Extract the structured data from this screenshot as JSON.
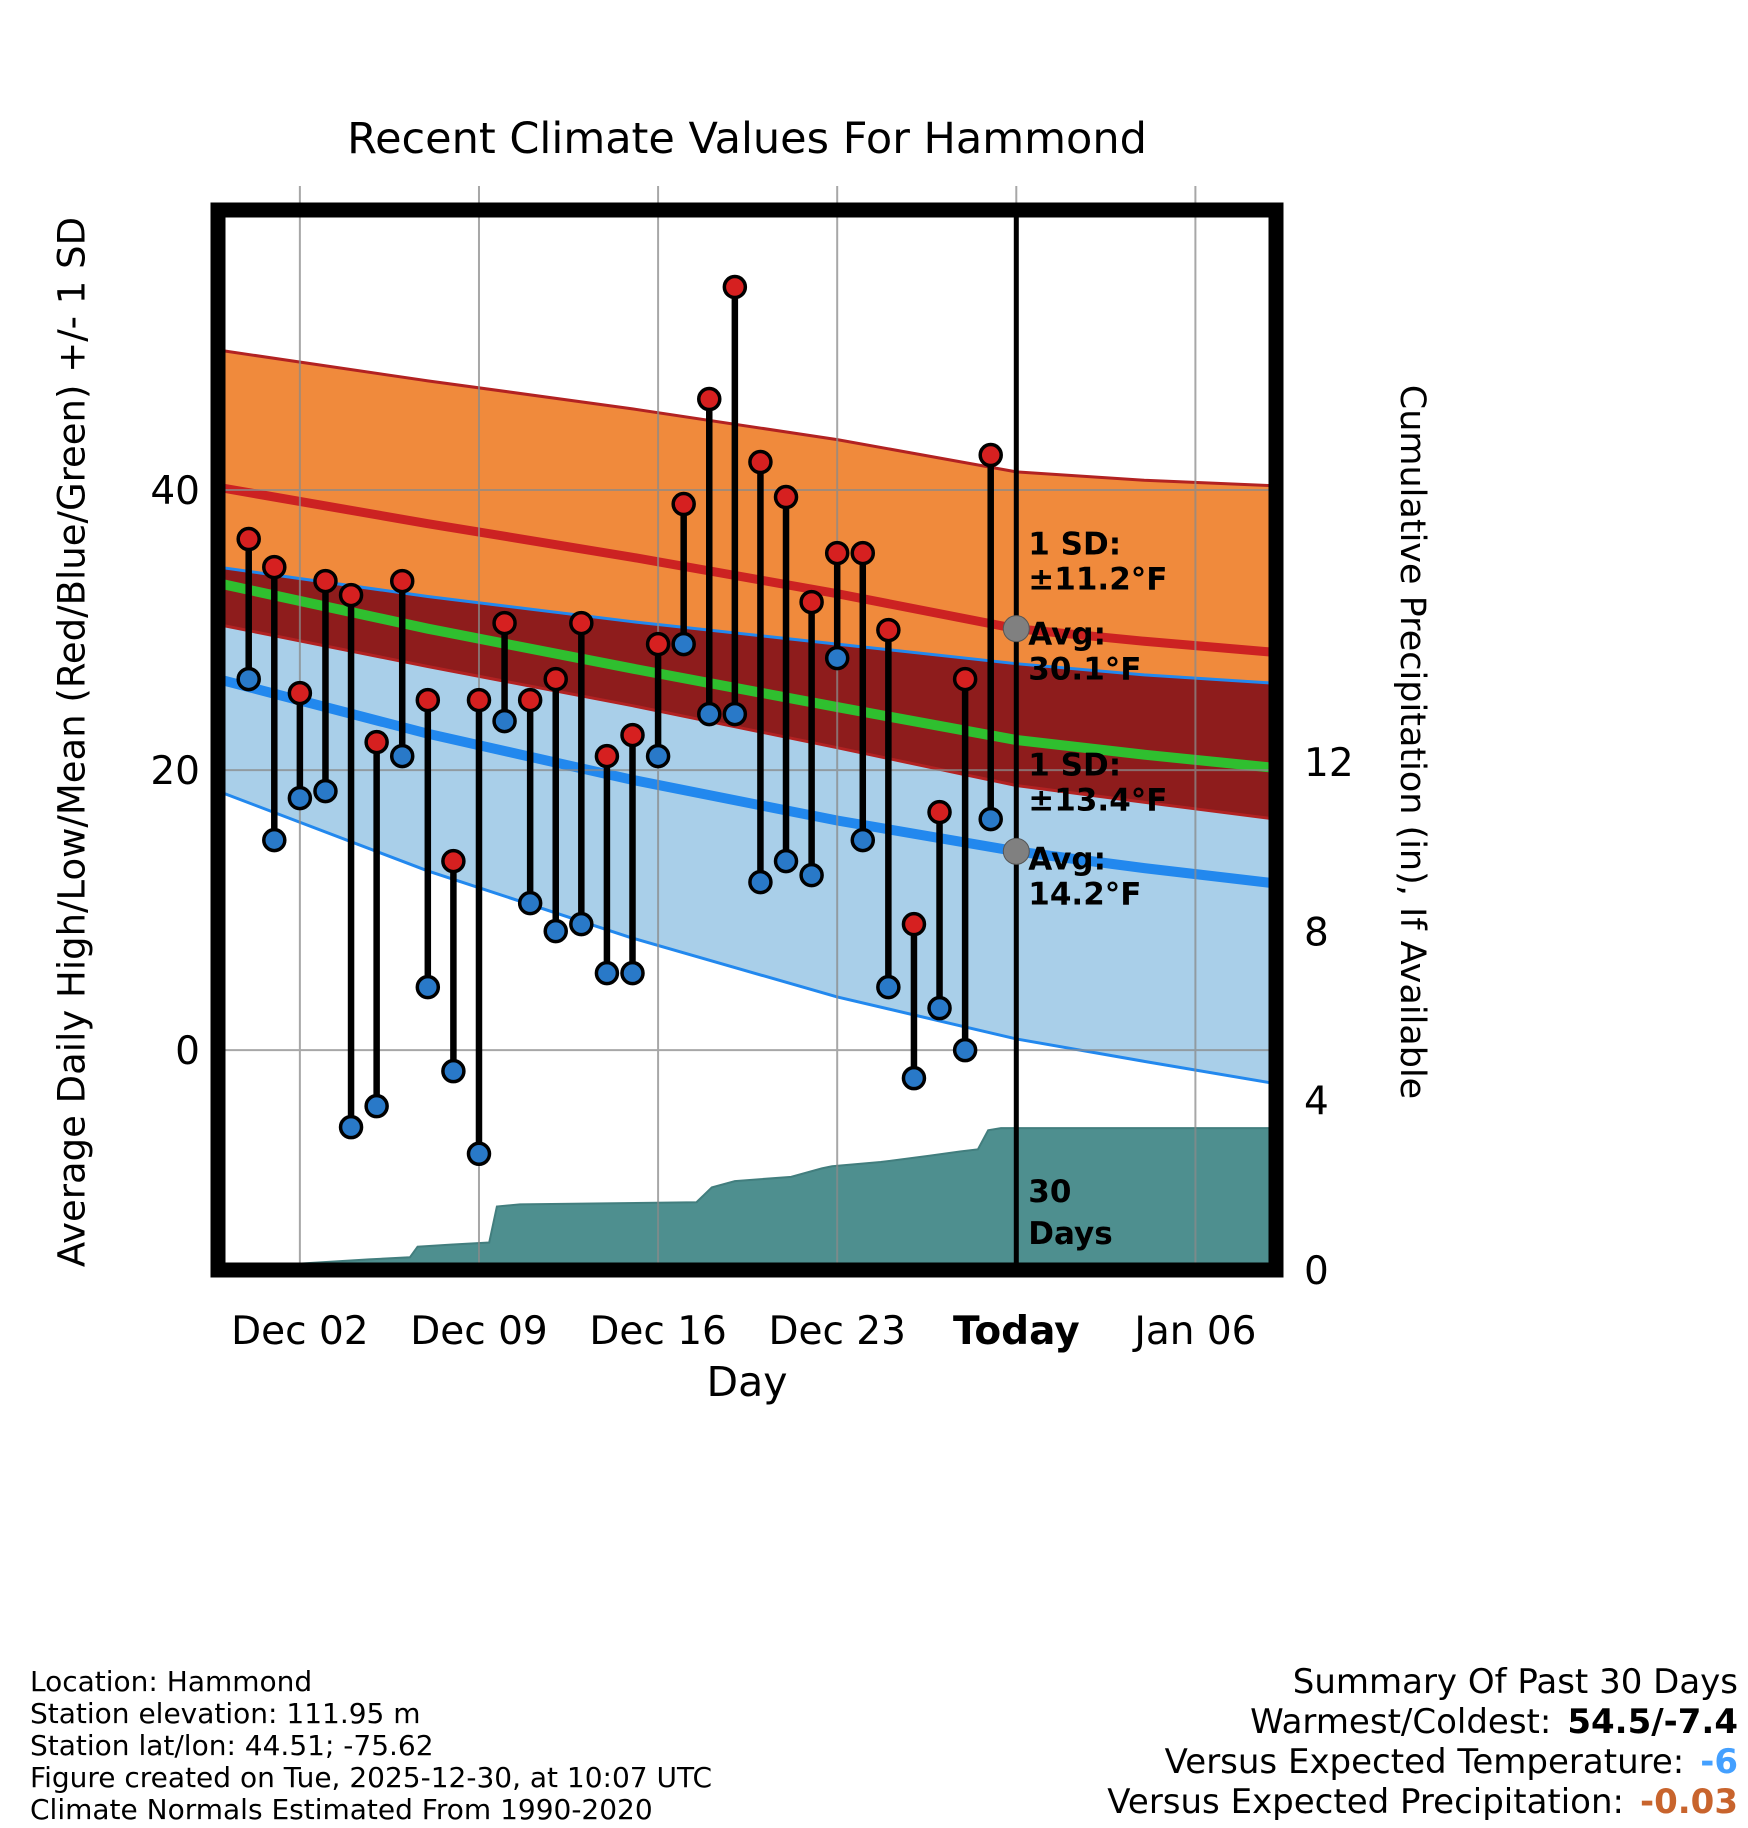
{
  "title": "Recent Climate Values For Hammond",
  "axes": {
    "left_label": "Average Daily High/Low/Mean (Red/Blue/Green) +/- 1 SD",
    "right_label": "Cumulative Precipitation (in), If Available",
    "x_label": "Day"
  },
  "colors": {
    "high_band": "#F08A3C",
    "overlap_band": "#8E1C1C",
    "low_band": "#A9CFE9",
    "high_line": "#CC2222",
    "low_line": "#2288EE",
    "mean_line": "#2FBF2F",
    "band_edge_red": "#B22222",
    "band_edge_blue": "#2288EE",
    "high_dot": "#D62020",
    "low_dot": "#2979C8",
    "stem": "#000000",
    "precip_fill": "#4E8F8F",
    "precip_edge": "#427E7E",
    "grid": "#8A8A8A",
    "today_line": "#000000",
    "avg_dot": "#808080",
    "annotation_gray": "#787878"
  },
  "chart_data": {
    "type": "line",
    "title": "Recent Climate Values For Hammond",
    "xlabel": "Day",
    "ylabel_left": "Average Daily High/Low/Mean (Red/Blue/Green) +/- 1 SD",
    "ylabel_right": "Cumulative Precipitation (in), If Available",
    "x_domain": [
      -1.2,
      40.15
    ],
    "temp_range": [
      -15.7,
      60.0
    ],
    "precip_range": [
      0,
      25.04
    ],
    "grid": true,
    "today_day": 30,
    "x_ticks": [
      {
        "d": 2,
        "label": "Dec 02",
        "bold": false
      },
      {
        "d": 9,
        "label": "Dec 09",
        "bold": false
      },
      {
        "d": 16,
        "label": "Dec 16",
        "bold": false
      },
      {
        "d": 23,
        "label": "Dec 23",
        "bold": false
      },
      {
        "d": 30,
        "label": "Today",
        "bold": true
      },
      {
        "d": 37,
        "label": "Jan 06",
        "bold": false
      }
    ],
    "y_ticks_left": [
      {
        "v": 0,
        "label": "0"
      },
      {
        "v": 20,
        "label": "20"
      },
      {
        "v": 40,
        "label": "40"
      }
    ],
    "y_ticks_right": [
      {
        "v": 0,
        "label": "0"
      },
      {
        "v": 4,
        "label": "4"
      },
      {
        "v": 8,
        "label": "8"
      },
      {
        "v": 12,
        "label": "12"
      }
    ],
    "daily": {
      "start_day": 0,
      "highs": [
        36.5,
        34.5,
        25.5,
        33.5,
        32.5,
        22,
        33.5,
        25,
        13.5,
        25,
        30.5,
        25,
        26.5,
        30.5,
        21,
        22.5,
        29,
        39,
        46.5,
        54.5,
        42,
        39.5,
        32,
        35.5,
        35.5,
        30,
        9,
        17,
        26.5,
        42.5
      ],
      "lows": [
        26.5,
        15,
        18,
        18.5,
        -5.5,
        -4,
        21,
        4.5,
        -1.5,
        -7.4,
        23.5,
        10.5,
        8.5,
        9,
        5.5,
        5.5,
        21,
        29,
        24,
        24,
        12,
        13.5,
        12.5,
        28,
        15,
        4.5,
        -2,
        3,
        0,
        16.5
      ]
    },
    "climatology": {
      "d": [
        -1.2,
        7,
        15,
        23,
        30,
        35,
        40.15
      ],
      "avg_high": [
        40.2,
        37.6,
        35.2,
        32.6,
        30.1,
        29.2,
        28.4
      ],
      "sd_high": [
        9.8,
        10.2,
        10.6,
        11.0,
        11.2,
        11.5,
        11.9
      ],
      "avg_low": [
        26.5,
        22.6,
        19.3,
        16.4,
        14.2,
        13.0,
        11.9
      ],
      "sd_low": [
        8.0,
        9.8,
        11.3,
        12.6,
        13.4,
        13.8,
        14.3
      ]
    },
    "precip_cumulative": {
      "d": [
        -1.2,
        1.6,
        2.0,
        4.7,
        6.3,
        6.6,
        7.9,
        9.4,
        9.7,
        10.6,
        17.5,
        18.1,
        19.0,
        21.2,
        22.4,
        22.8,
        24.7,
        26.6,
        27.8,
        28.5,
        28.9,
        29.4,
        40.15
      ],
      "v": [
        0,
        0.05,
        0.15,
        0.25,
        0.3,
        0.55,
        0.6,
        0.65,
        1.5,
        1.55,
        1.6,
        1.95,
        2.1,
        2.2,
        2.4,
        2.45,
        2.55,
        2.7,
        2.8,
        2.85,
        3.3,
        3.35,
        3.35
      ]
    }
  },
  "annotations": {
    "high": {
      "sd": [
        "1 SD:",
        "±11.2°F"
      ],
      "avg": [
        "Avg:",
        "30.1°F"
      ]
    },
    "low": {
      "sd": [
        "1 SD:",
        "±13.4°F"
      ],
      "avg": [
        "Avg:",
        "14.2°F"
      ]
    },
    "period": [
      "30",
      "Days"
    ]
  },
  "footer": {
    "lines": [
      "Location: Hammond",
      "Station elevation: 111.95 m",
      "Station lat/lon: 44.51; -75.62",
      "Figure created on Tue, 2025-12-30, at 10:07 UTC",
      "Climate Normals Estimated From 1990-2020"
    ]
  },
  "summary": {
    "title": "Summary Of Past 30 Days",
    "rows": [
      {
        "label": "Warmest/Coldest:",
        "value": "54.5/-7.4",
        "value_color": "#000000"
      },
      {
        "label": "Versus Expected Temperature:",
        "value": "-6",
        "value_color": "#44A0FF"
      },
      {
        "label": "Versus Expected Precipitation:",
        "value": "-0.03",
        "value_color": "#C8642D"
      }
    ]
  }
}
